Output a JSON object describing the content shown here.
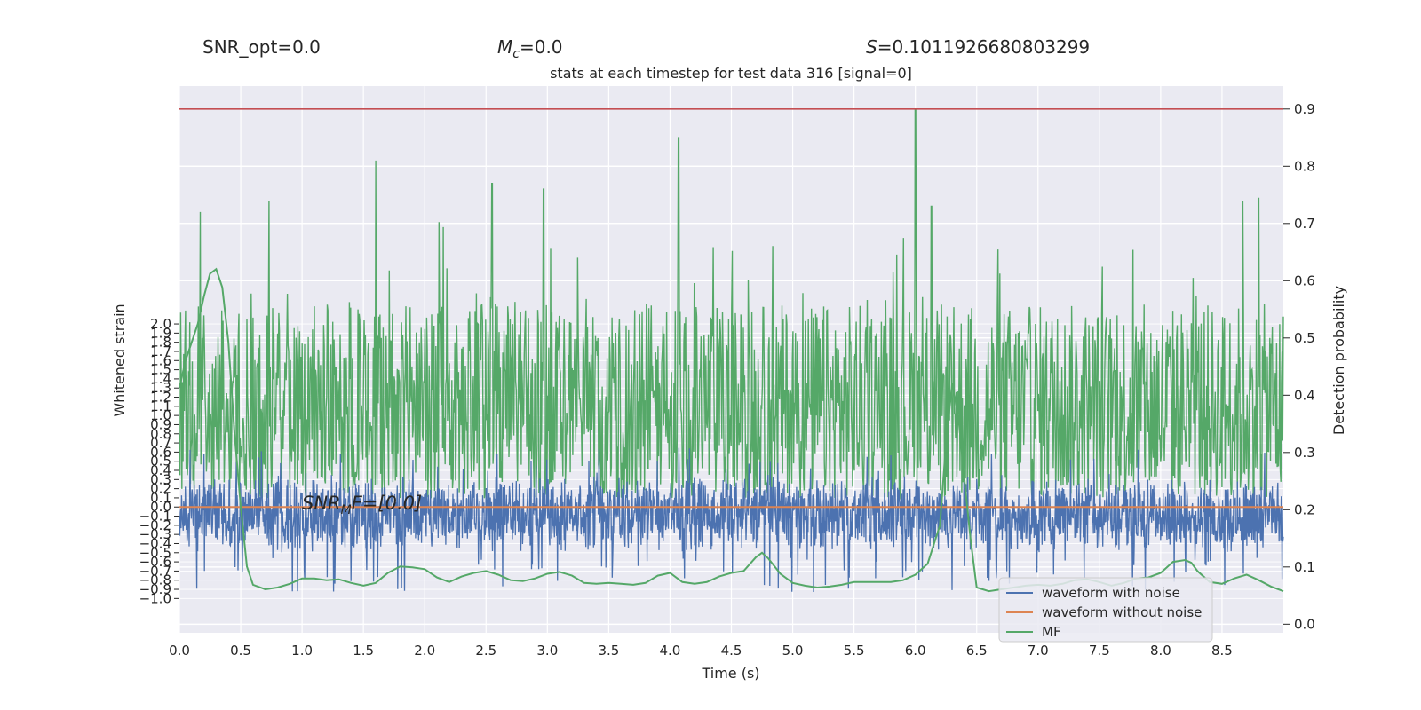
{
  "header": {
    "snr_opt": "SNR_opt=0.0",
    "mc_symbol": "M",
    "mc_sub": "c",
    "mc_value": "=0.0",
    "s_symbol": "S",
    "s_value": "=0.1011926680803299"
  },
  "chart_data": {
    "type": "line",
    "title": "stats at each timestep for test data 316 [signal=0]",
    "xlabel": "Time (s)",
    "ylabel_left": "Whitened strain",
    "ylabel_right": "Detection probability",
    "xlim": [
      0.0,
      9.0
    ],
    "ylim_left": [
      -1.375,
      4.6
    ],
    "ylim_right": [
      -0.015,
      0.94
    ],
    "x_ticks": [
      "0.0",
      "0.5",
      "1.0",
      "1.5",
      "2.0",
      "2.5",
      "3.0",
      "3.5",
      "4.0",
      "4.5",
      "5.0",
      "5.5",
      "6.0",
      "6.5",
      "7.0",
      "7.5",
      "8.0",
      "8.5"
    ],
    "left_ticks": [
      "2.0",
      "1.9",
      "1.8",
      "1.7",
      "1.6",
      "1.5",
      "1.4",
      "1.3",
      "1.2",
      "1.1",
      "1.0",
      "0.9",
      "0.8",
      "0.7",
      "0.6",
      "0.5",
      "0.4",
      "0.3",
      "0.2",
      "0.1",
      "0.0",
      "−0.1",
      "−0.2",
      "−0.3",
      "−0.4",
      "−0.5",
      "−0.6",
      "−0.7",
      "−0.8",
      "−0.9",
      "−1.0"
    ],
    "right_ticks": [
      "0.9",
      "0.8",
      "0.7",
      "0.6",
      "0.5",
      "0.4",
      "0.3",
      "0.2",
      "0.1",
      "0.0"
    ],
    "threshold": 0.9,
    "annotation": {
      "prefix": "SNR",
      "sub": "M",
      "suffix": "F=[0.0]"
    },
    "series": [
      {
        "name": "waveform with noise",
        "color": "#4c72b0",
        "axis": "left",
        "description": "whitened noisy strain, dense noise roughly between -0.6 and 0.35"
      },
      {
        "name": "waveform without noise",
        "color": "#dd8452",
        "axis": "left",
        "values_constant": 0.0
      },
      {
        "name": "MF",
        "color": "#55a868",
        "axis": "left",
        "x": [
          0.0,
          0.05,
          0.1,
          0.15,
          0.2,
          0.25,
          0.3,
          0.35,
          0.4,
          0.45,
          0.5,
          0.55,
          0.6,
          0.7,
          0.8,
          0.9,
          1.0,
          1.1,
          1.2,
          1.3,
          1.4,
          1.5,
          1.6,
          1.7,
          1.8,
          1.9,
          2.0,
          2.1,
          2.2,
          2.3,
          2.4,
          2.5,
          2.6,
          2.7,
          2.8,
          2.9,
          3.0,
          3.1,
          3.2,
          3.3,
          3.4,
          3.5,
          3.6,
          3.7,
          3.8,
          3.9,
          4.0,
          4.1,
          4.2,
          4.3,
          4.4,
          4.5,
          4.6,
          4.7,
          4.75,
          4.8,
          4.9,
          5.0,
          5.1,
          5.2,
          5.3,
          5.4,
          5.5,
          5.6,
          5.7,
          5.8,
          5.9,
          6.0,
          6.1,
          6.2,
          6.25,
          6.3,
          6.35,
          6.4,
          6.45,
          6.5,
          6.6,
          6.7,
          6.8,
          6.9,
          7.0,
          7.1,
          7.2,
          7.3,
          7.4,
          7.5,
          7.6,
          7.7,
          7.8,
          7.9,
          8.0,
          8.1,
          8.2,
          8.25,
          8.3,
          8.4,
          8.5,
          8.6,
          8.7,
          8.8,
          8.9,
          9.0
        ],
        "values": [
          1.3,
          1.6,
          1.8,
          2.0,
          2.3,
          2.55,
          2.6,
          2.4,
          1.8,
          0.8,
          0.0,
          -0.65,
          -0.85,
          -0.9,
          -0.88,
          -0.84,
          -0.78,
          -0.78,
          -0.8,
          -0.79,
          -0.83,
          -0.86,
          -0.83,
          -0.72,
          -0.65,
          -0.66,
          -0.68,
          -0.77,
          -0.82,
          -0.76,
          -0.72,
          -0.7,
          -0.74,
          -0.8,
          -0.81,
          -0.78,
          -0.73,
          -0.71,
          -0.75,
          -0.83,
          -0.84,
          -0.83,
          -0.84,
          -0.85,
          -0.83,
          -0.75,
          -0.72,
          -0.82,
          -0.84,
          -0.82,
          -0.76,
          -0.72,
          -0.7,
          -0.55,
          -0.5,
          -0.56,
          -0.73,
          -0.83,
          -0.86,
          -0.88,
          -0.87,
          -0.85,
          -0.82,
          -0.82,
          -0.82,
          -0.82,
          -0.8,
          -0.74,
          -0.62,
          -0.2,
          0.7,
          1.35,
          1.0,
          0.3,
          -0.35,
          -0.88,
          -0.92,
          -0.9,
          -0.88,
          -0.86,
          -0.85,
          -0.86,
          -0.84,
          -0.8,
          -0.79,
          -0.82,
          -0.86,
          -0.83,
          -0.78,
          -0.77,
          -0.72,
          -0.6,
          -0.58,
          -0.61,
          -0.7,
          -0.82,
          -0.84,
          -0.78,
          -0.74,
          -0.8,
          -0.87,
          -0.92
        ]
      },
      {
        "name": "detection probability",
        "color": "#55a868",
        "axis": "right",
        "description": "dense per-timestep probability trace, baseline about 0.2 to 0.6 with spikes",
        "spikes": [
          {
            "x": 0.17,
            "y": 0.72
          },
          {
            "x": 0.73,
            "y": 0.74
          },
          {
            "x": 1.6,
            "y": 0.81
          },
          {
            "x": 2.55,
            "y": 0.77
          },
          {
            "x": 2.97,
            "y": 0.76
          },
          {
            "x": 4.07,
            "y": 0.85
          },
          {
            "x": 6.0,
            "y": 0.9
          },
          {
            "x": 6.13,
            "y": 0.73
          },
          {
            "x": 8.67,
            "y": 0.74
          },
          {
            "x": 8.8,
            "y": 0.745
          }
        ]
      }
    ],
    "legend": {
      "position": "lower-right",
      "entries": [
        {
          "label": "waveform with noise",
          "color": "#4c72b0"
        },
        {
          "label": "waveform without noise",
          "color": "#dd8452"
        },
        {
          "label": "MF",
          "color": "#55a868"
        }
      ]
    },
    "grid": true,
    "background": "#eaeaf2",
    "threshold_color": "#c44e52"
  }
}
